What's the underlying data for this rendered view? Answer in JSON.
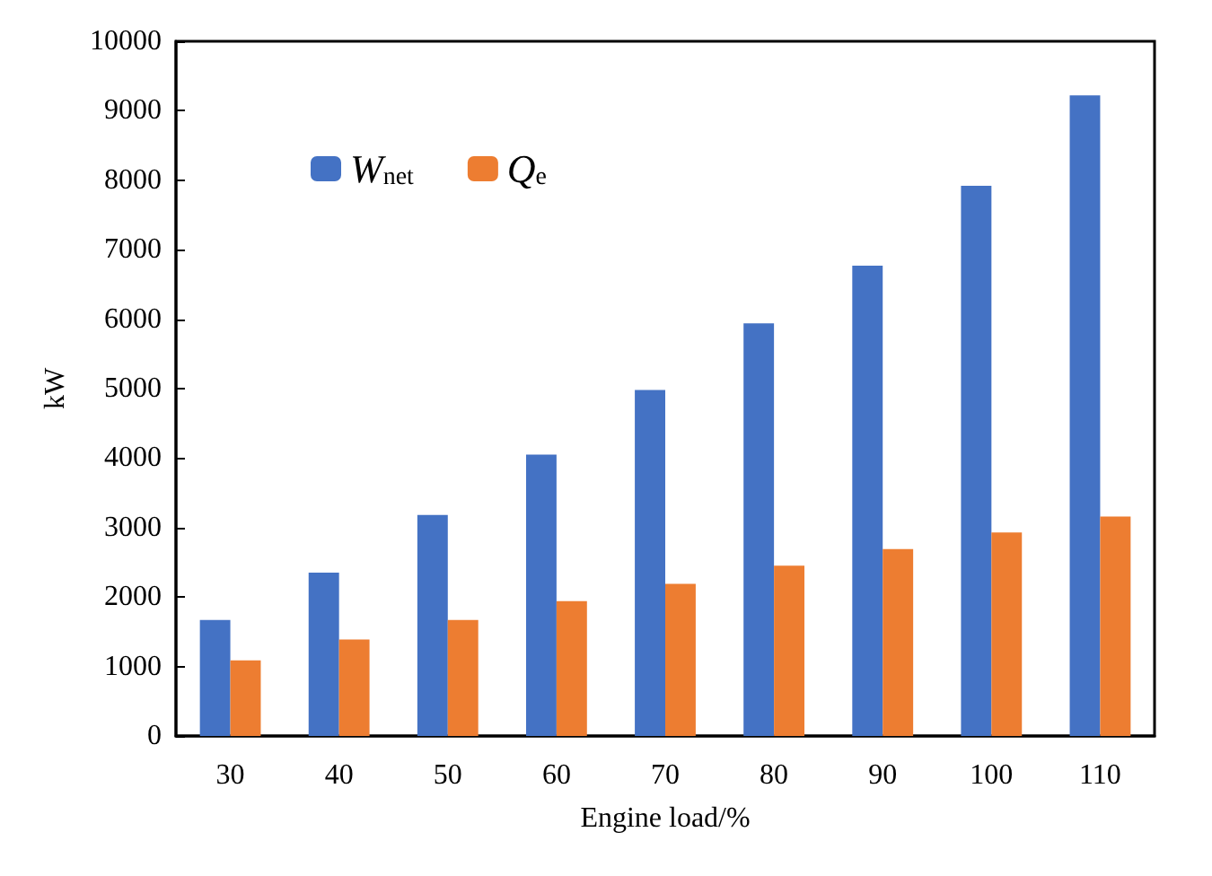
{
  "chart_data": {
    "type": "bar",
    "xlabel": "Engine load/%",
    "ylabel": "kW",
    "categories": [
      "30",
      "40",
      "50",
      "60",
      "70",
      "80",
      "90",
      "100",
      "110"
    ],
    "series": [
      {
        "name": "W$_{net}$",
        "color": "#4472c4",
        "values": [
          1670,
          2350,
          3180,
          4050,
          4980,
          5940,
          6770,
          7920,
          9220
        ]
      },
      {
        "name": "Q$_{e}$",
        "color": "#ed7d31",
        "values": [
          1090,
          1390,
          1670,
          1940,
          2190,
          2450,
          2690,
          2930,
          3160
        ]
      }
    ],
    "ylim": [
      0,
      10000
    ],
    "yticks": [
      0,
      1000,
      2000,
      3000,
      4000,
      5000,
      6000,
      7000,
      8000,
      9000,
      10000
    ],
    "grid": false,
    "legend": "top left"
  }
}
